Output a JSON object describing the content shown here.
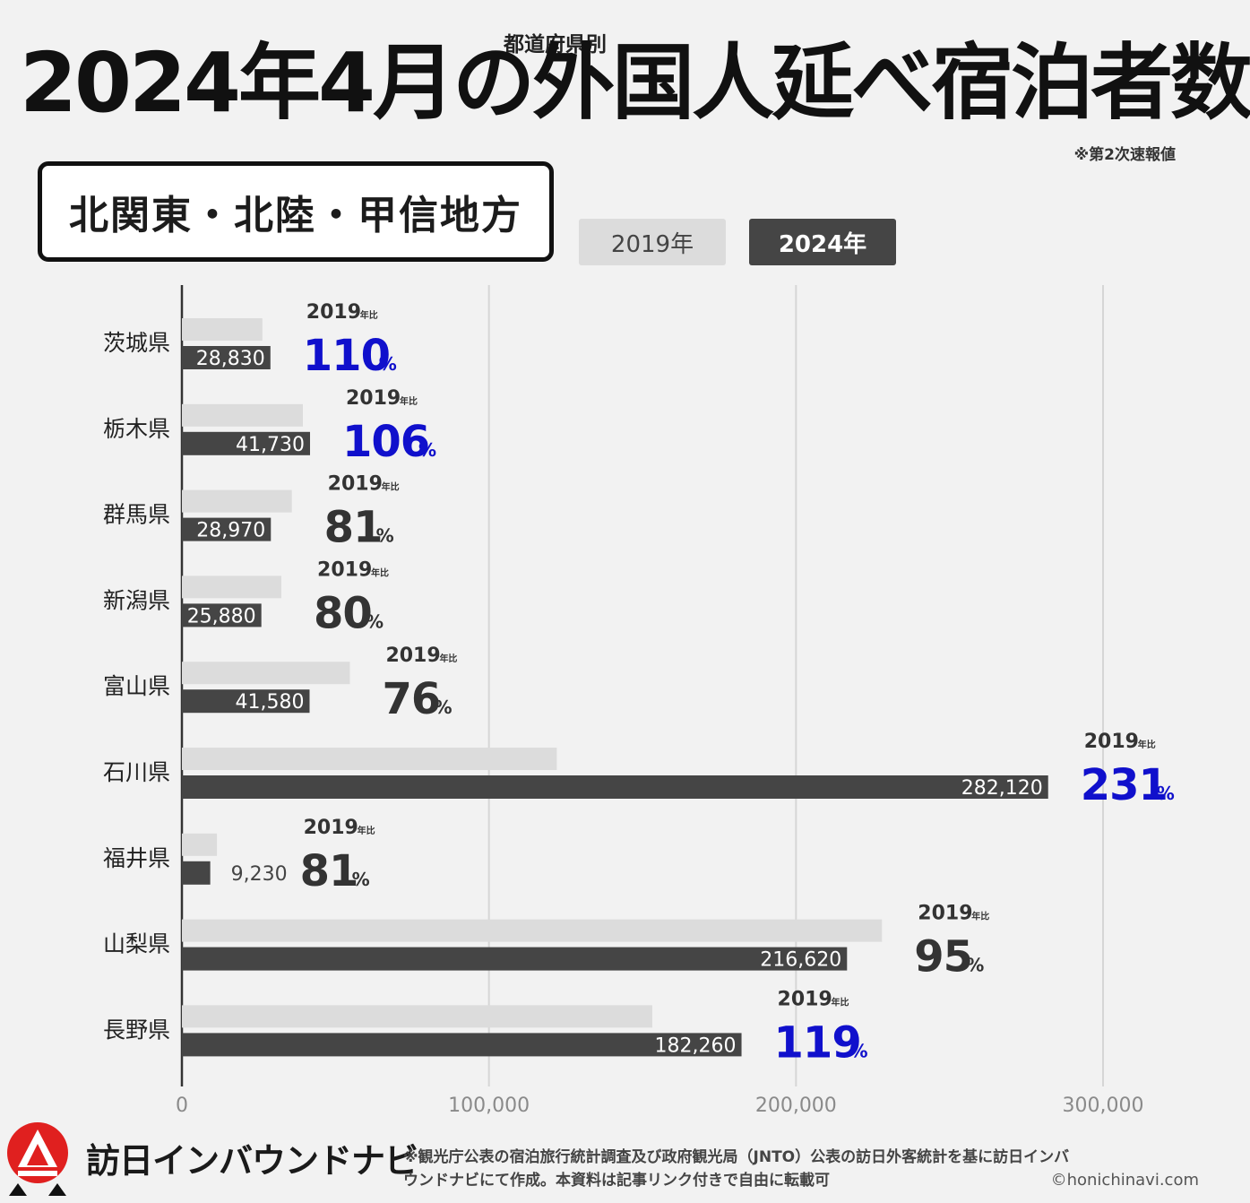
{
  "title": {
    "main": "2024年4月の外国人延べ宿泊者数",
    "superscript": "都道府県別",
    "note": "※第2次速報値"
  },
  "region": "北関東・北陸・甲信地方",
  "legend": {
    "label_2019": "2019年",
    "label_2024": "2024年"
  },
  "colors": {
    "bar_2019": "#dcdcdc",
    "bar_2024": "#454545",
    "ratio_up": "#1010cc",
    "ratio_down": "#333333",
    "grid": "#d6d6d6"
  },
  "chart_data": {
    "type": "bar",
    "orientation": "horizontal",
    "title": "2024年4月の外国人延べ宿泊者数",
    "categories": [
      "茨城県",
      "栃木県",
      "群馬県",
      "新潟県",
      "富山県",
      "石川県",
      "福井県",
      "山梨県",
      "長野県"
    ],
    "series": [
      {
        "name": "2019年",
        "values": [
          26200,
          39400,
          35800,
          32400,
          54700,
          122100,
          11400,
          228000,
          153200
        ]
      },
      {
        "name": "2024年",
        "values": [
          28830,
          41730,
          28970,
          25880,
          41580,
          282120,
          9230,
          216620,
          182260
        ]
      }
    ],
    "value_labels": [
      "28,830",
      "41,730",
      "28,970",
      "25,880",
      "41,580",
      "282,120",
      "9,230",
      "216,620",
      "182,260"
    ],
    "ratio_prefix": "2019",
    "ratio_prefix_suffix": "年比",
    "ratio_unit": "%",
    "ratios": [
      "110",
      "106",
      "81",
      "80",
      "76",
      "231",
      "81",
      "95",
      "119"
    ],
    "xlim": [
      0,
      300000
    ],
    "ticks": [
      0,
      100000,
      200000,
      300000
    ],
    "tick_labels": [
      "0",
      "100,000",
      "200,000",
      "300,000"
    ],
    "grid": true
  },
  "footer": {
    "logo_text": "訪日インバウンドナビ",
    "note_line1": "※観光庁公表の宿泊旅行統計調査及び政府観光局（JNTO）公表の訪日外客統計を基に訪日インバ",
    "note_line2": "ウンドナビにて作成。本資料は記事リンク付きで自由に転載可",
    "credit": "©honichinavi.com"
  }
}
